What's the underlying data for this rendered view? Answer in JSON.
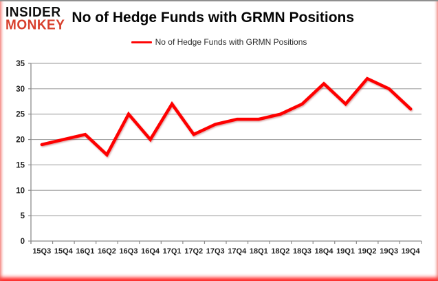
{
  "logo": {
    "line1": "INSIDER",
    "line2": "MONKEY",
    "color1": "#111111",
    "color2": "#d8402d"
  },
  "title": "No of Hedge Funds with GRMN Positions",
  "legend": {
    "label": "No of Hedge Funds with GRMN Positions",
    "marker_color": "#fe0505"
  },
  "chart_data": {
    "type": "line",
    "title": "No of Hedge Funds with GRMN Positions",
    "categories": [
      "15Q3",
      "15Q4",
      "16Q1",
      "16Q2",
      "16Q3",
      "16Q4",
      "17Q1",
      "17Q2",
      "17Q3",
      "17Q4",
      "18Q1",
      "18Q2",
      "18Q3",
      "18Q4",
      "19Q1",
      "19Q2",
      "19Q3",
      "19Q4"
    ],
    "series": [
      {
        "name": "No of Hedge Funds with GRMN Positions",
        "color": "#fe0505",
        "values": [
          19,
          20,
          21,
          17,
          25,
          20,
          27,
          21,
          23,
          24,
          24,
          25,
          27,
          31,
          27,
          32,
          30,
          26
        ]
      }
    ],
    "xlabel": "",
    "ylabel": "",
    "ylim": [
      0,
      35
    ],
    "ytick_step": 5,
    "grid": true,
    "legend_position": "top-center",
    "grid_color": "#969696",
    "axis_color": "#8c8c8c",
    "tick_label_color": "#1f1f1f",
    "line_width": 4.5
  }
}
